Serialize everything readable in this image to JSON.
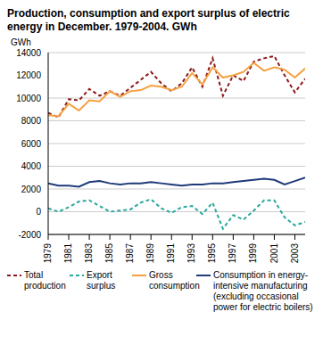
{
  "chart_data": {
    "type": "line",
    "title": "Production, consumption and export surplus of electric energy in December. 1979-2004. GWh",
    "y_label": "GWh",
    "x": [
      1979,
      1980,
      1981,
      1982,
      1983,
      1984,
      1985,
      1986,
      1987,
      1988,
      1989,
      1990,
      1991,
      1992,
      1993,
      1994,
      1995,
      1996,
      1997,
      1998,
      1999,
      2000,
      2001,
      2002,
      2003,
      2004
    ],
    "xlim": [
      1979,
      2004
    ],
    "xticks": [
      1979,
      1981,
      1983,
      1985,
      1987,
      1989,
      1991,
      1993,
      1995,
      1997,
      1999,
      2001,
      2003
    ],
    "ylim": [
      -2000,
      14000
    ],
    "yticks": [
      -2000,
      0,
      2000,
      4000,
      6000,
      8000,
      10000,
      12000,
      14000
    ],
    "grid": true,
    "series": [
      {
        "name": "Total production",
        "color": "#8b1a1a",
        "line_style": "dashed",
        "values": [
          8700,
          8300,
          9900,
          9800,
          10800,
          10200,
          10600,
          10200,
          10900,
          11600,
          12300,
          11300,
          10600,
          11300,
          12700,
          11000,
          13500,
          10200,
          12000,
          11500,
          13200,
          13500,
          13700,
          12000,
          10500,
          11700
        ]
      },
      {
        "name": "Export surplus",
        "color": "#2aa89c",
        "line_style": "dashed",
        "values": [
          300,
          0,
          400,
          900,
          1000,
          500,
          0,
          100,
          200,
          800,
          1100,
          300,
          -100,
          400,
          500,
          -200,
          800,
          -1500,
          -300,
          -700,
          100,
          1000,
          1000,
          -500,
          -1200,
          -900
        ]
      },
      {
        "name": "Gross consumption",
        "color": "#f4a040",
        "line_style": "solid",
        "values": [
          8500,
          8400,
          9500,
          8900,
          9800,
          9700,
          10600,
          10100,
          10600,
          10700,
          11100,
          11000,
          10700,
          11000,
          12200,
          11200,
          12700,
          11800,
          12000,
          12300,
          13100,
          12400,
          12700,
          12500,
          11800,
          12600
        ]
      },
      {
        "name": "Consumption in energy-intensive manufacturing (excluding occasional power for electric boilers)",
        "color": "#1f3a7a",
        "line_style": "solid",
        "values": [
          2500,
          2300,
          2300,
          2200,
          2600,
          2700,
          2500,
          2400,
          2500,
          2500,
          2600,
          2500,
          2400,
          2300,
          2400,
          2400,
          2500,
          2500,
          2600,
          2700,
          2800,
          2900,
          2800,
          2400,
          2700,
          3000
        ]
      }
    ]
  }
}
